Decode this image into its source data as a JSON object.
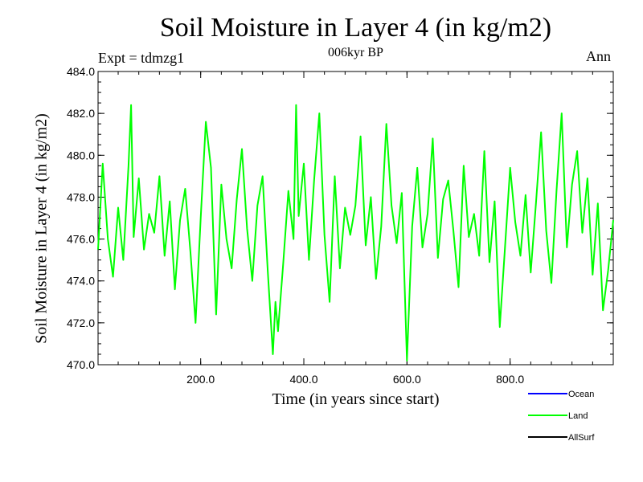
{
  "chart_data": {
    "type": "line",
    "title": "Soil Moisture in Layer 4 (in kg/m2)",
    "subtitle": "006kyr BP",
    "expt_label": "Expt = tdmzg1",
    "season": "Ann",
    "xlabel": "Time (in years since start)",
    "ylabel": "Soil Moisture in Layer 4 (in kg/m2)",
    "xlim": [
      1,
      1000
    ],
    "ylim": [
      470,
      484
    ],
    "x_ticks": [
      200,
      400,
      600,
      800
    ],
    "x_tick_labels": [
      "200.0",
      "400.0",
      "600.0",
      "800.0"
    ],
    "y_ticks": [
      470,
      472,
      474,
      476,
      478,
      480,
      482,
      484
    ],
    "y_tick_labels": [
      "470.0",
      "472.0",
      "474.0",
      "476.0",
      "478.0",
      "480.0",
      "482.0",
      "484.0"
    ],
    "legend_position": "bottom-right, outside plot",
    "series": [
      {
        "name": "Ocean",
        "color": "#0000ff",
        "x": [],
        "values": []
      },
      {
        "name": "Land",
        "color": "#00ff00",
        "x": [
          1,
          10,
          20,
          30,
          40,
          50,
          60,
          65,
          70,
          80,
          90,
          100,
          110,
          120,
          130,
          140,
          150,
          160,
          170,
          180,
          190,
          200,
          210,
          220,
          230,
          240,
          250,
          260,
          270,
          280,
          290,
          300,
          310,
          320,
          330,
          340,
          345,
          350,
          360,
          370,
          380,
          385,
          390,
          400,
          410,
          420,
          430,
          440,
          450,
          460,
          470,
          480,
          490,
          500,
          510,
          520,
          530,
          540,
          550,
          560,
          570,
          580,
          590,
          600,
          610,
          620,
          630,
          640,
          650,
          660,
          670,
          680,
          690,
          700,
          710,
          720,
          730,
          740,
          750,
          760,
          770,
          780,
          790,
          800,
          810,
          820,
          830,
          840,
          850,
          860,
          870,
          880,
          890,
          900,
          910,
          920,
          930,
          940,
          950,
          960,
          970,
          980,
          990,
          1000
        ],
        "values": [
          475.5,
          479.6,
          476.0,
          474.2,
          477.5,
          475.0,
          479.5,
          482.4,
          476.1,
          478.9,
          475.5,
          477.2,
          476.3,
          479.0,
          475.2,
          477.8,
          473.6,
          476.9,
          478.4,
          475.4,
          472.0,
          477.0,
          481.6,
          479.4,
          472.4,
          478.6,
          476.0,
          474.6,
          477.9,
          480.3,
          476.5,
          474.0,
          477.6,
          479.0,
          474.5,
          470.5,
          473.0,
          471.6,
          474.8,
          478.3,
          476.0,
          482.4,
          477.1,
          479.6,
          475.0,
          478.8,
          482.0,
          476.2,
          473.0,
          479.0,
          474.6,
          477.5,
          476.2,
          477.6,
          480.9,
          475.7,
          478.0,
          474.1,
          476.6,
          481.5,
          477.6,
          475.8,
          478.2,
          470.2,
          476.6,
          479.4,
          475.6,
          477.2,
          480.8,
          475.1,
          477.9,
          478.8,
          476.4,
          473.7,
          479.5,
          476.1,
          477.2,
          475.2,
          480.2,
          474.9,
          477.8,
          471.8,
          475.6,
          479.4,
          476.8,
          475.2,
          478.1,
          474.4,
          477.7,
          481.1,
          476.4,
          473.9,
          478.3,
          482.0,
          475.6,
          478.6,
          480.2,
          476.3,
          478.9,
          474.3,
          477.7,
          472.6,
          474.5,
          476.9
        ]
      },
      {
        "name": "AllSurf",
        "color": "#000000",
        "x": [],
        "values": []
      }
    ]
  }
}
